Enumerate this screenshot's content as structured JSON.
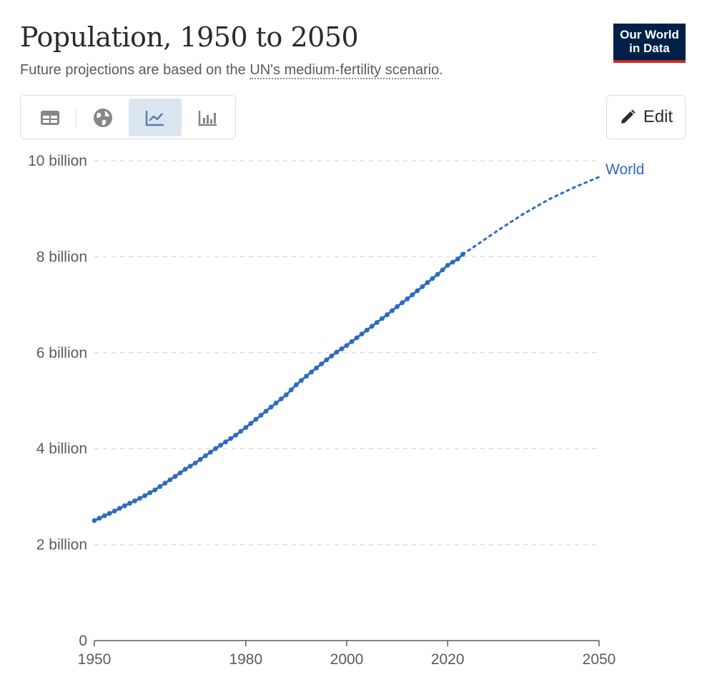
{
  "header": {
    "title": "Population, 1950 to 2050",
    "subtitle_prefix": "Future projections are based on the ",
    "subtitle_link": "UN's medium-fertility scenario",
    "subtitle_suffix": "."
  },
  "logo": {
    "line1": "Our World",
    "line2": "in Data"
  },
  "toolbar": {
    "buttons": [
      {
        "icon": "table-icon",
        "active": false
      },
      {
        "icon": "globe-icon",
        "active": false
      },
      {
        "icon": "line-chart-icon",
        "active": true
      },
      {
        "icon": "bar-chart-icon",
        "active": false
      }
    ]
  },
  "edit_button": {
    "label": "Edit",
    "icon": "pencil-icon"
  },
  "colors": {
    "series": "#2e6bbf",
    "grid": "#dddddd",
    "axis": "#5b5b5b",
    "logo_bg": "#002147",
    "logo_bar": "#ce261e"
  },
  "chart_data": {
    "type": "line",
    "title": "Population, 1950 to 2050",
    "xlabel": "",
    "ylabel": "",
    "xlim": [
      1950,
      2050
    ],
    "ylim": [
      0,
      10
    ],
    "unit": "billion",
    "x_ticks": [
      {
        "value": 1950,
        "label": "1950"
      },
      {
        "value": 1980,
        "label": "1980"
      },
      {
        "value": 2000,
        "label": "2000"
      },
      {
        "value": 2020,
        "label": "2020"
      },
      {
        "value": 2050,
        "label": "2050"
      }
    ],
    "y_ticks": [
      {
        "value": 0,
        "label": "0"
      },
      {
        "value": 2,
        "label": "2 billion"
      },
      {
        "value": 4,
        "label": "4 billion"
      },
      {
        "value": 6,
        "label": "6 billion"
      },
      {
        "value": 8,
        "label": "8 billion"
      },
      {
        "value": 10,
        "label": "10 billion"
      }
    ],
    "grid": true,
    "series": [
      {
        "name": "World",
        "label": "World",
        "historical": {
          "x": [
            1950,
            1952,
            1954,
            1956,
            1958,
            1960,
            1962,
            1964,
            1966,
            1968,
            1970,
            1972,
            1974,
            1976,
            1978,
            1980,
            1982,
            1984,
            1986,
            1988,
            1990,
            1992,
            1994,
            1996,
            1998,
            2000,
            2002,
            2004,
            2006,
            2008,
            2010,
            2012,
            2014,
            2016,
            2018,
            2020,
            2022,
            2023
          ],
          "values": [
            2.5,
            2.6,
            2.7,
            2.81,
            2.91,
            3.02,
            3.14,
            3.28,
            3.42,
            3.57,
            3.7,
            3.85,
            4.0,
            4.14,
            4.28,
            4.44,
            4.61,
            4.78,
            4.95,
            5.12,
            5.33,
            5.51,
            5.68,
            5.85,
            6.01,
            6.15,
            6.31,
            6.47,
            6.63,
            6.79,
            6.96,
            7.12,
            7.29,
            7.46,
            7.63,
            7.82,
            7.95,
            8.05
          ]
        },
        "projection": {
          "x": [
            2023,
            2025,
            2030,
            2035,
            2040,
            2045,
            2050
          ],
          "values": [
            8.05,
            8.19,
            8.55,
            8.89,
            9.19,
            9.44,
            9.66
          ]
        }
      }
    ]
  }
}
